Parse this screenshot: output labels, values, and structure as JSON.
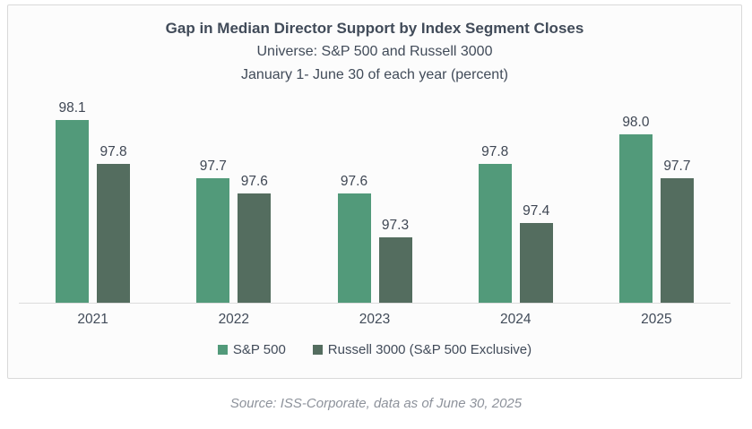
{
  "chart_data": {
    "type": "bar",
    "title": "Gap in Median Director Support by Index Segment Closes",
    "subtitle1": "Universe: S&P 500 and Russell 3000",
    "subtitle2": "January 1- June 30 of each year (percent)",
    "categories": [
      "2021",
      "2022",
      "2023",
      "2024",
      "2025"
    ],
    "series": [
      {
        "name": "S&P 500",
        "color": "#529a7a",
        "values": [
          98.1,
          97.7,
          97.6,
          97.8,
          98.0
        ]
      },
      {
        "name": "Russell 3000 (S&P 500 Exclusive)",
        "color": "#546d5f",
        "values": [
          97.8,
          97.6,
          97.3,
          97.4,
          97.7
        ]
      }
    ],
    "xlabel": "",
    "ylabel": "",
    "ylim": [
      96.85,
      98.3
    ],
    "value_label_decimals": 1,
    "grid": false,
    "legend_position": "bottom",
    "axis_line_color": "#dcdcdc"
  },
  "footer": {
    "source": "Source: ISS-Corporate, data as of June 30, 2025"
  }
}
